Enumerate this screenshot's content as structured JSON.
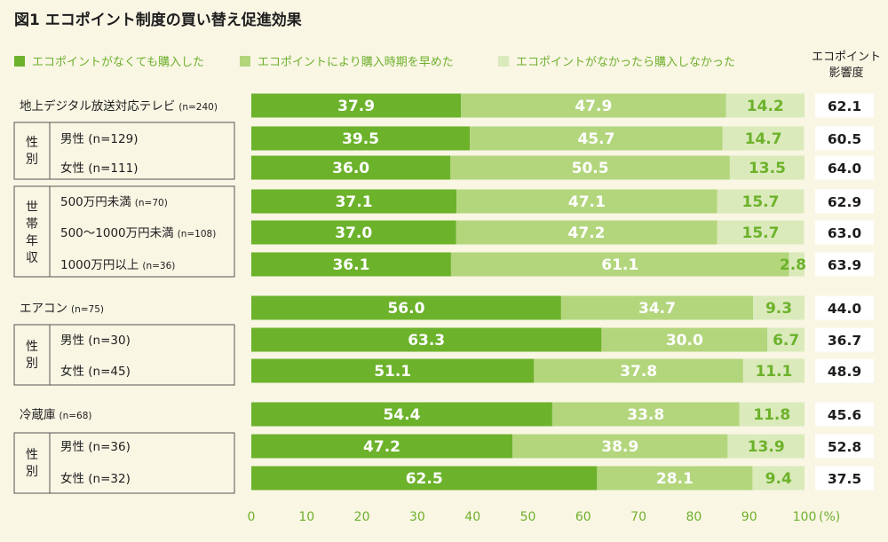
{
  "title": "図1 エコポイント制度の買い替え促進効果",
  "colors": {
    "dark_green": "#6cb22b",
    "mid_green": "#b3d67d",
    "light_green": "#daeabb",
    "axis_text": "#6fb02d",
    "background": "#f9f6e4",
    "impact_bg": "#ffffff"
  },
  "impact_header": [
    "エコポイント",
    "影響度"
  ],
  "group_labels": [
    {
      "id": "sex-1",
      "chars": [
        "性",
        "別"
      ]
    },
    {
      "id": "income",
      "chars": [
        "世",
        "帯",
        "年",
        "収"
      ]
    },
    {
      "id": "sex-2",
      "chars": [
        "性",
        "別"
      ]
    },
    {
      "id": "sex-3",
      "chars": [
        "性",
        "別"
      ]
    }
  ],
  "chart_data": {
    "type": "bar",
    "orientation": "horizontal",
    "stacked": true,
    "xlim": [
      0,
      100
    ],
    "x_ticks": [
      0,
      10,
      20,
      30,
      40,
      50,
      60,
      70,
      80,
      90,
      100
    ],
    "x_unit": "(%)",
    "legend_position": "top",
    "series": [
      {
        "name": "エコポイントがなくても購入した",
        "color": "#6cb22b",
        "values": [
          37.9,
          39.5,
          36.0,
          37.1,
          37.0,
          36.1,
          56.0,
          63.3,
          51.1,
          54.4,
          47.2,
          62.5
        ]
      },
      {
        "name": "エコポイントにより購入時期を早めた",
        "color": "#b3d67d",
        "values": [
          47.9,
          45.7,
          50.5,
          47.1,
          47.2,
          61.1,
          34.7,
          30.0,
          37.8,
          33.8,
          38.9,
          28.1
        ]
      },
      {
        "name": "エコポイントがなかったら購入しなかった",
        "color": "#daeabb",
        "values": [
          14.2,
          14.7,
          13.5,
          15.7,
          15.7,
          2.8,
          9.3,
          6.7,
          11.1,
          11.8,
          13.9,
          9.4
        ]
      }
    ],
    "categories": [
      {
        "label": "地上デジタル放送対応テレビ",
        "n": "(n=240)",
        "impact": "62.1"
      },
      {
        "label": "男性 (n=129)",
        "n": "",
        "impact": "60.5"
      },
      {
        "label": "女性 (n=111)",
        "n": "",
        "impact": "64.0"
      },
      {
        "label": "500万円未満",
        "n": "(n=70)",
        "impact": "62.9"
      },
      {
        "label": "500～1000万円未満",
        "n": "(n=108)",
        "impact": "63.0"
      },
      {
        "label": "1000万円以上",
        "n": "(n=36)",
        "impact": "63.9"
      },
      {
        "label": "エアコン",
        "n": "(n=75)",
        "impact": "44.0"
      },
      {
        "label": "男性 (n=30)",
        "n": "",
        "impact": "36.7"
      },
      {
        "label": "女性 (n=45)",
        "n": "",
        "impact": "48.9"
      },
      {
        "label": "冷蔵庫",
        "n": "(n=68)",
        "impact": "45.6"
      },
      {
        "label": "男性 (n=36)",
        "n": "",
        "impact": "52.8"
      },
      {
        "label": "女性 (n=32)",
        "n": "",
        "impact": "37.5"
      }
    ]
  }
}
